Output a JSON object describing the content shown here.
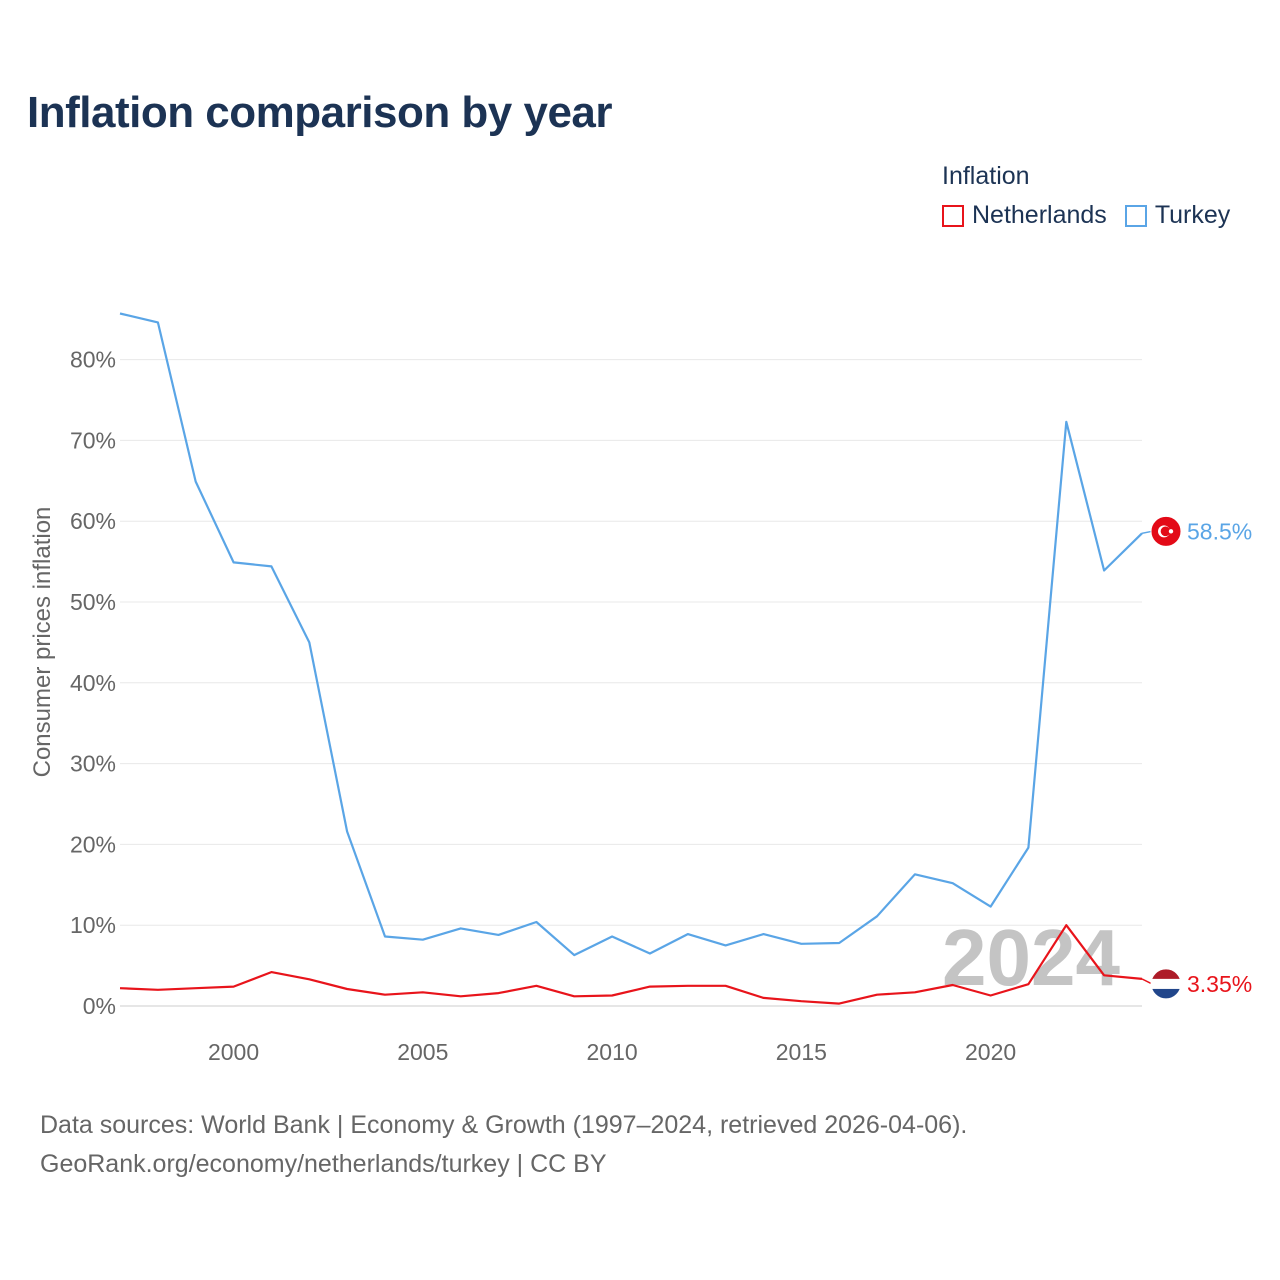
{
  "chart_data": {
    "type": "line",
    "title": "Inflation comparison by year",
    "legend_title": "Inflation",
    "ylabel": "Consumer prices inflation",
    "xlabel": "",
    "x": [
      1997,
      1998,
      1999,
      2000,
      2001,
      2002,
      2003,
      2004,
      2005,
      2006,
      2007,
      2008,
      2009,
      2010,
      2011,
      2012,
      2013,
      2014,
      2015,
      2016,
      2017,
      2018,
      2019,
      2020,
      2021,
      2022,
      2023,
      2024
    ],
    "series": [
      {
        "name": "Netherlands",
        "color": "#e8141b",
        "values": [
          2.2,
          2.0,
          2.2,
          2.4,
          4.2,
          3.3,
          2.1,
          1.4,
          1.7,
          1.2,
          1.6,
          2.5,
          1.2,
          1.3,
          2.4,
          2.5,
          2.5,
          1.0,
          0.6,
          0.3,
          1.4,
          1.7,
          2.6,
          1.3,
          2.7,
          10.0,
          3.8,
          3.35
        ],
        "end_label": "3.35%",
        "flag": "netherlands-flag-icon"
      },
      {
        "name": "Turkey",
        "color": "#5aa5e6",
        "values": [
          85.7,
          84.6,
          64.9,
          54.9,
          54.4,
          45.0,
          21.6,
          8.6,
          8.2,
          9.6,
          8.8,
          10.4,
          6.3,
          8.6,
          6.5,
          8.9,
          7.5,
          8.9,
          7.7,
          7.8,
          11.1,
          16.3,
          15.2,
          12.3,
          19.6,
          72.3,
          53.9,
          58.5
        ],
        "end_label": "58.5%",
        "flag": "turkey-flag-icon"
      }
    ],
    "xticks": [
      2000,
      2005,
      2010,
      2015,
      2020
    ],
    "yticks": [
      0,
      10,
      20,
      30,
      40,
      50,
      60,
      70,
      80
    ],
    "ytick_labels": [
      "0%",
      "10%",
      "20%",
      "30%",
      "40%",
      "50%",
      "60%",
      "70%",
      "80%"
    ],
    "xlim": [
      1997,
      2024
    ],
    "ylim": [
      0,
      80
    ],
    "current_year": "2024",
    "grid": true
  },
  "footer": {
    "line1": "Data sources: World Bank | Economy & Growth (1997–2024, retrieved 2026-04-06).",
    "line2": "GeoRank.org/economy/netherlands/turkey | CC BY"
  }
}
